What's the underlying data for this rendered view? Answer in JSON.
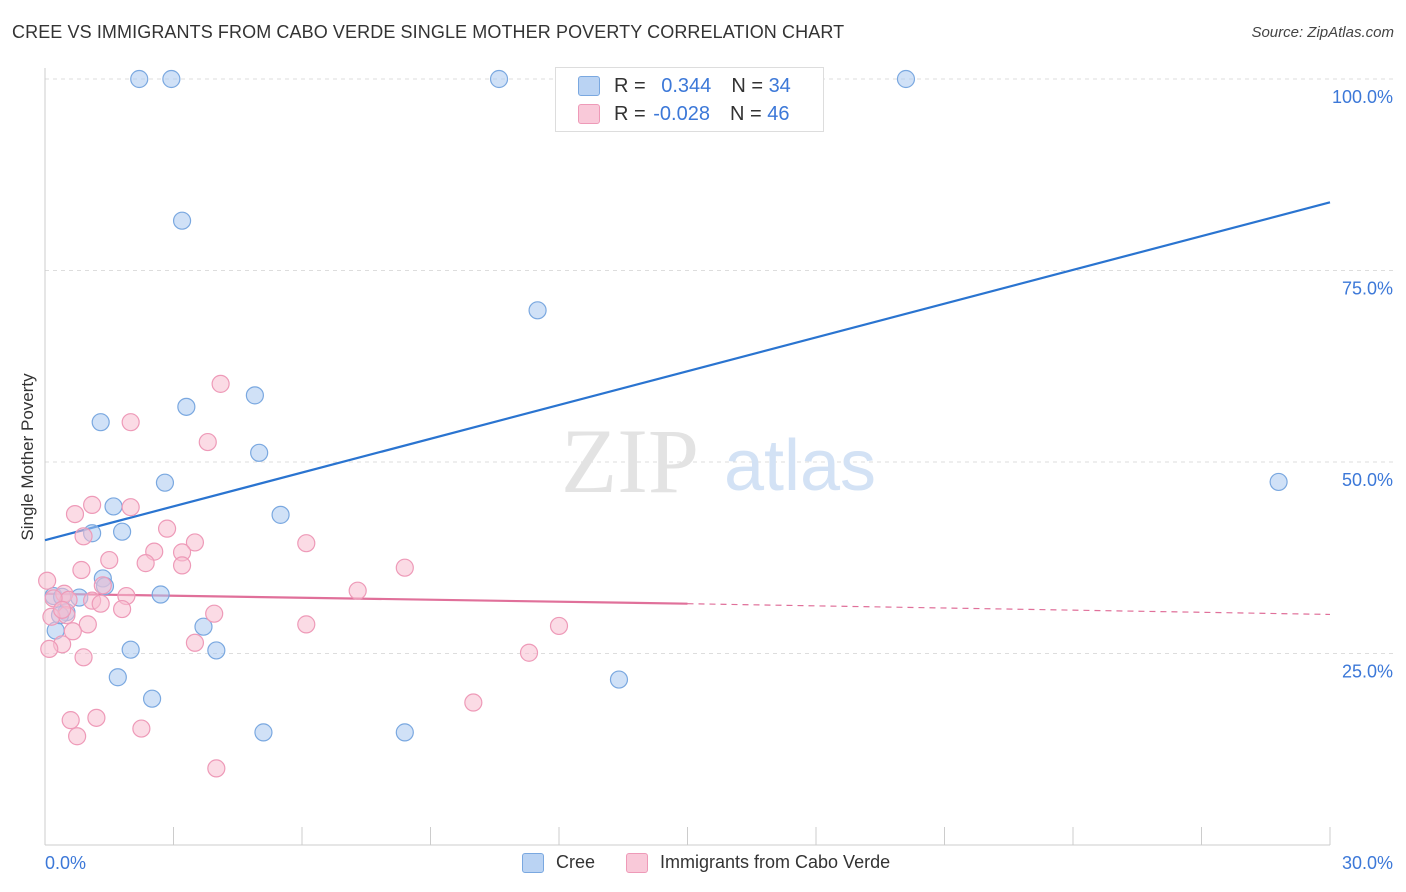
{
  "header": {
    "title": "CREE VS IMMIGRANTS FROM CABO VERDE SINGLE MOTHER POVERTY CORRELATION CHART",
    "source": "Source: ZipAtlas.com"
  },
  "watermark": {
    "zip": "ZIP",
    "atlas": "atlas"
  },
  "legend_top": {
    "rows": [
      {
        "r_label": "R =",
        "r_value": "0.344",
        "n_label": "N =",
        "n_value": "34"
      },
      {
        "r_label": "R =",
        "r_value": "-0.028",
        "n_label": "N =",
        "n_value": "46"
      }
    ]
  },
  "legend_bottom": {
    "series1": "Cree",
    "series2": "Immigrants from Cabo Verde"
  },
  "colors": {
    "cree_fill": "#aac8f0",
    "cree_stroke": "#7aa8e0",
    "cree_line": "#2a74d0",
    "cabo_fill": "#f7bdd0",
    "cabo_stroke": "#ee9ab8",
    "cabo_line": "#e0709a",
    "tick_label": "#3c78d8",
    "grid": "#dddddd"
  },
  "chart_data": {
    "type": "scatter",
    "title": "CREE VS IMMIGRANTS FROM CABO VERDE SINGLE MOTHER POVERTY CORRELATION CHART",
    "xlabel": "",
    "ylabel": "Single Mother Poverty",
    "xlim": [
      0,
      30
    ],
    "ylim": [
      0,
      100
    ],
    "x_tick_labels": [
      "0.0%",
      "30.0%"
    ],
    "y_ticks": [
      25,
      50,
      75,
      100
    ],
    "y_tick_labels": [
      "25.0%",
      "50.0%",
      "75.0%",
      "100.0%"
    ],
    "grid": true,
    "legend_position": "bottom",
    "series": [
      {
        "name": "Cree",
        "points": [
          [
            2.2,
            100
          ],
          [
            2.95,
            100
          ],
          [
            10.6,
            100
          ],
          [
            14.1,
            100
          ],
          [
            20.1,
            100
          ],
          [
            3.2,
            81.5
          ],
          [
            11.5,
            69.8
          ],
          [
            4.9,
            58.7
          ],
          [
            3.3,
            57.2
          ],
          [
            1.3,
            55.2
          ],
          [
            5.0,
            51.2
          ],
          [
            2.8,
            47.3
          ],
          [
            28.8,
            47.4
          ],
          [
            1.6,
            44.2
          ],
          [
            5.5,
            43.1
          ],
          [
            1.1,
            40.7
          ],
          [
            1.8,
            40.9
          ],
          [
            1.35,
            34.8
          ],
          [
            1.4,
            33.8
          ],
          [
            0.2,
            32.5
          ],
          [
            0.4,
            32.4
          ],
          [
            0.8,
            32.3
          ],
          [
            2.7,
            32.7
          ],
          [
            0.5,
            30.4
          ],
          [
            0.25,
            28.0
          ],
          [
            3.7,
            28.5
          ],
          [
            2.0,
            25.5
          ],
          [
            4.0,
            25.4
          ],
          [
            1.7,
            21.9
          ],
          [
            13.4,
            21.6
          ],
          [
            2.5,
            19.1
          ],
          [
            5.1,
            14.7
          ],
          [
            8.4,
            14.7
          ],
          [
            0.35,
            30.0
          ]
        ],
        "trend": {
          "x": [
            0,
            30
          ],
          "y": [
            39.8,
            83.9
          ]
        }
      },
      {
        "name": "Immigrants from Cabo Verde",
        "points": [
          [
            4.1,
            60.2
          ],
          [
            2.0,
            55.2
          ],
          [
            3.8,
            52.6
          ],
          [
            1.1,
            44.4
          ],
          [
            2.0,
            44.1
          ],
          [
            0.7,
            43.2
          ],
          [
            2.85,
            41.3
          ],
          [
            0.9,
            40.3
          ],
          [
            3.5,
            39.5
          ],
          [
            6.1,
            39.4
          ],
          [
            2.55,
            38.3
          ],
          [
            3.2,
            38.2
          ],
          [
            2.35,
            36.8
          ],
          [
            1.5,
            37.2
          ],
          [
            3.2,
            36.5
          ],
          [
            8.4,
            36.2
          ],
          [
            0.85,
            35.9
          ],
          [
            1.35,
            33.9
          ],
          [
            0.05,
            34.5
          ],
          [
            7.3,
            33.2
          ],
          [
            0.45,
            32.8
          ],
          [
            0.55,
            32.0
          ],
          [
            1.1,
            31.9
          ],
          [
            1.3,
            31.5
          ],
          [
            0.2,
            32.2
          ],
          [
            1.9,
            32.5
          ],
          [
            1.8,
            30.8
          ],
          [
            0.5,
            30.0
          ],
          [
            0.15,
            29.8
          ],
          [
            0.4,
            30.7
          ],
          [
            3.95,
            30.2
          ],
          [
            1.0,
            28.8
          ],
          [
            6.1,
            28.8
          ],
          [
            12.0,
            28.6
          ],
          [
            0.65,
            27.9
          ],
          [
            0.4,
            26.2
          ],
          [
            0.1,
            25.6
          ],
          [
            3.5,
            26.4
          ],
          [
            0.9,
            24.5
          ],
          [
            11.3,
            25.1
          ],
          [
            10.0,
            18.6
          ],
          [
            0.6,
            16.3
          ],
          [
            1.2,
            16.6
          ],
          [
            2.25,
            15.2
          ],
          [
            0.75,
            14.2
          ],
          [
            4.0,
            10.0
          ]
        ],
        "trend": {
          "x": [
            0,
            15
          ],
          "y": [
            32.8,
            31.5
          ]
        },
        "trend_dashed": {
          "x": [
            15,
            30
          ],
          "y": [
            31.5,
            30.1
          ]
        }
      }
    ]
  }
}
